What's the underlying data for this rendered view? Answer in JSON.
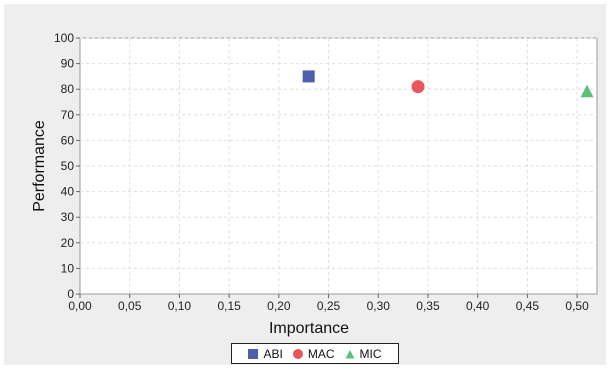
{
  "chart_data": {
    "type": "scatter",
    "title": "",
    "xlabel": "Importance",
    "ylabel": "Performance",
    "xlim": [
      0,
      0.52
    ],
    "ylim": [
      0,
      100
    ],
    "x_ticks": [
      "0,00",
      "0,05",
      "0,10",
      "0,15",
      "0,20",
      "0,25",
      "0,30",
      "0,35",
      "0,40",
      "0,45",
      "0,50"
    ],
    "y_ticks": [
      "0",
      "10",
      "20",
      "30",
      "40",
      "50",
      "60",
      "70",
      "80",
      "90",
      "100"
    ],
    "grid": true,
    "legend_position": "bottom",
    "series": [
      {
        "name": "ABI",
        "marker": "square",
        "color": "#4f5fb0",
        "points": [
          {
            "x": 0.23,
            "y": 85
          }
        ]
      },
      {
        "name": "MAC",
        "marker": "circle",
        "color": "#e8555a",
        "points": [
          {
            "x": 0.34,
            "y": 81
          }
        ]
      },
      {
        "name": "MIC",
        "marker": "triangle",
        "color": "#5cbf7c",
        "points": [
          {
            "x": 0.51,
            "y": 79
          }
        ]
      }
    ]
  }
}
